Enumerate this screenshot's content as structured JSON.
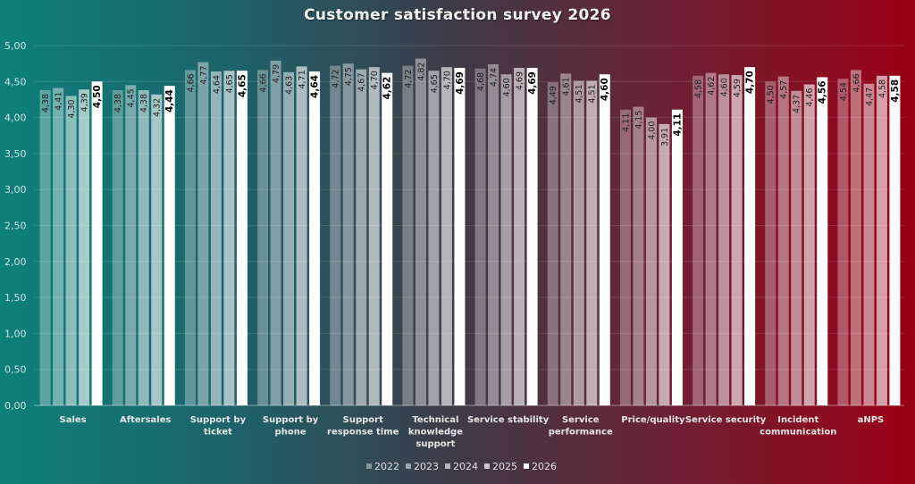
{
  "chart_data": {
    "type": "bar",
    "title": "Customer satisfaction survey 2026",
    "xlabel": "",
    "ylabel": "",
    "ylim": [
      0,
      5
    ],
    "yticks": [
      "0,00",
      "0,50",
      "1,00",
      "1,50",
      "2,00",
      "2,50",
      "3,00",
      "3,50",
      "4,00",
      "4,50",
      "5,00"
    ],
    "grid": true,
    "legend_position": "bottom",
    "categories": [
      "Sales",
      "Aftersales",
      "Support by ticket",
      "Support by phone",
      "Support response time",
      "Technical knowledge support",
      "Service stability",
      "Service performance",
      "Price/quality",
      "Service security",
      "Incident communication",
      "aNPS"
    ],
    "category_lines": [
      [
        "Sales"
      ],
      [
        "Aftersales"
      ],
      [
        "Support by",
        "ticket"
      ],
      [
        "Support by",
        "phone"
      ],
      [
        "Support",
        "response time"
      ],
      [
        "Technical",
        "knowledge",
        "support"
      ],
      [
        "Service stability"
      ],
      [
        "Service",
        "performance"
      ],
      [
        "Price/quality"
      ],
      [
        "Service security"
      ],
      [
        "Incident",
        "communication"
      ],
      [
        "aNPS"
      ]
    ],
    "series": [
      {
        "name": "2022",
        "opacity": 0.32,
        "values": [
          4.38,
          4.38,
          4.66,
          4.66,
          4.72,
          4.72,
          4.68,
          4.49,
          4.11,
          4.58,
          4.5,
          4.54
        ]
      },
      {
        "name": "2023",
        "opacity": 0.42,
        "values": [
          4.41,
          4.45,
          4.77,
          4.79,
          4.75,
          4.82,
          4.74,
          4.61,
          4.15,
          4.62,
          4.57,
          4.66
        ]
      },
      {
        "name": "2024",
        "opacity": 0.52,
        "values": [
          4.3,
          4.38,
          4.64,
          4.63,
          4.67,
          4.65,
          4.6,
          4.51,
          4.0,
          4.6,
          4.37,
          4.47
        ]
      },
      {
        "name": "2025",
        "opacity": 0.62,
        "values": [
          4.39,
          4.32,
          4.65,
          4.71,
          4.7,
          4.7,
          4.69,
          4.51,
          3.91,
          4.59,
          4.46,
          4.58
        ]
      },
      {
        "name": "2026",
        "opacity": 1.0,
        "values": [
          4.5,
          4.44,
          4.65,
          4.64,
          4.62,
          4.69,
          4.69,
          4.6,
          4.11,
          4.7,
          4.56,
          4.58
        ]
      }
    ],
    "decimal_separator": ","
  }
}
